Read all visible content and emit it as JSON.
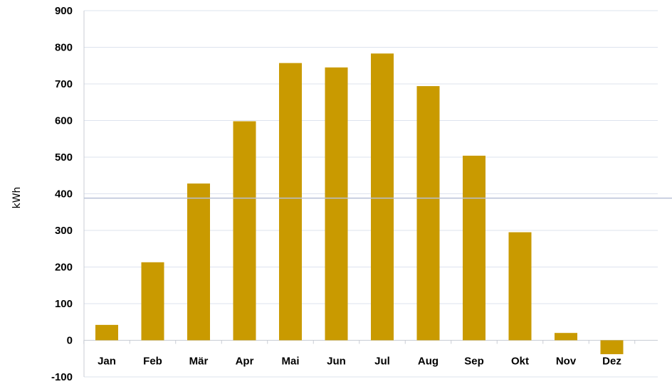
{
  "chart_data": {
    "type": "bar",
    "categories": [
      "Jan",
      "Feb",
      "Mär",
      "Apr",
      "Mai",
      "Jun",
      "Jul",
      "Aug",
      "Sep",
      "Okt",
      "Nov",
      "Dez"
    ],
    "values": [
      42,
      213,
      428,
      598,
      757,
      745,
      783,
      694,
      504,
      295,
      20,
      -38
    ],
    "title": "",
    "xlabel": "",
    "ylabel": "kWh",
    "ylim": [
      -100,
      900
    ],
    "yticks": [
      -100,
      0,
      100,
      200,
      300,
      400,
      500,
      600,
      700,
      800,
      900
    ],
    "reference_line": 388,
    "grid": true,
    "bar_color": "#c99a00"
  }
}
